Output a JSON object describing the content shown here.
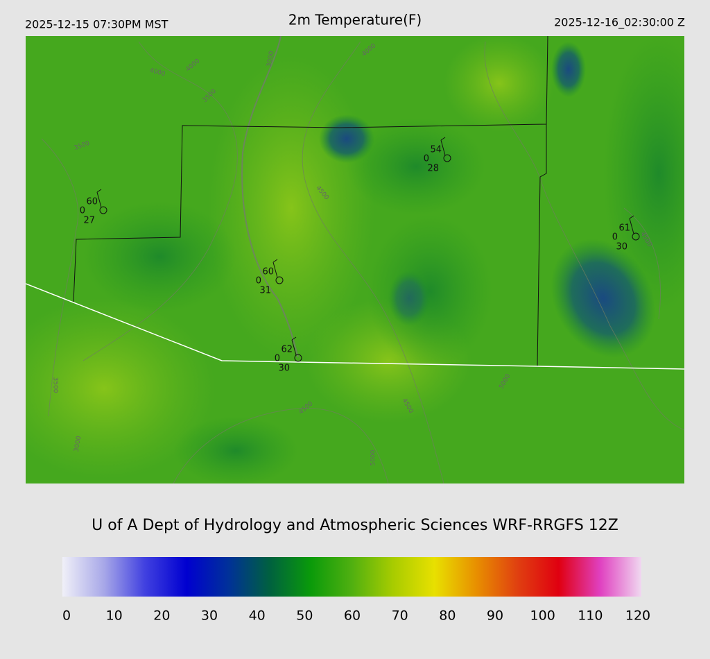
{
  "header": {
    "left": "2025-12-15 07:30PM MST",
    "title": "2m Temperature(F)",
    "right": "2025-12-16_02:30:00 Z"
  },
  "stations": [
    {
      "temp": 60,
      "code": 0,
      "dew": 27
    },
    {
      "temp": 60,
      "code": 0,
      "dew": 31
    },
    {
      "temp": 54,
      "code": 0,
      "dew": 28
    },
    {
      "temp": 61,
      "code": 0,
      "dew": 30
    },
    {
      "temp": 62,
      "code": 0,
      "dew": 30
    }
  ],
  "contour_labels": [
    "4000",
    "4000",
    "3500",
    "3000",
    "4000",
    "3500",
    "4500",
    "4500",
    "3500",
    "3000",
    "4500",
    "4500",
    "5000",
    "5000"
  ],
  "credit": "U of A Dept of Hydrology and Atmospheric Sciences WRF-RRGFS 12Z",
  "colorbar": {
    "range": [
      0,
      120
    ],
    "ticks": [
      0,
      10,
      20,
      30,
      40,
      50,
      60,
      70,
      80,
      90,
      100,
      110,
      120
    ],
    "colors": [
      "#f0f0f8",
      "#a8a8e8",
      "#4040e0",
      "#0000d0",
      "#00309a",
      "#006040",
      "#0a9a0a",
      "#50b010",
      "#a8cc00",
      "#e8e000",
      "#e89000",
      "#e04010",
      "#e00010",
      "#e040c0",
      "#f0d8f0"
    ]
  }
}
